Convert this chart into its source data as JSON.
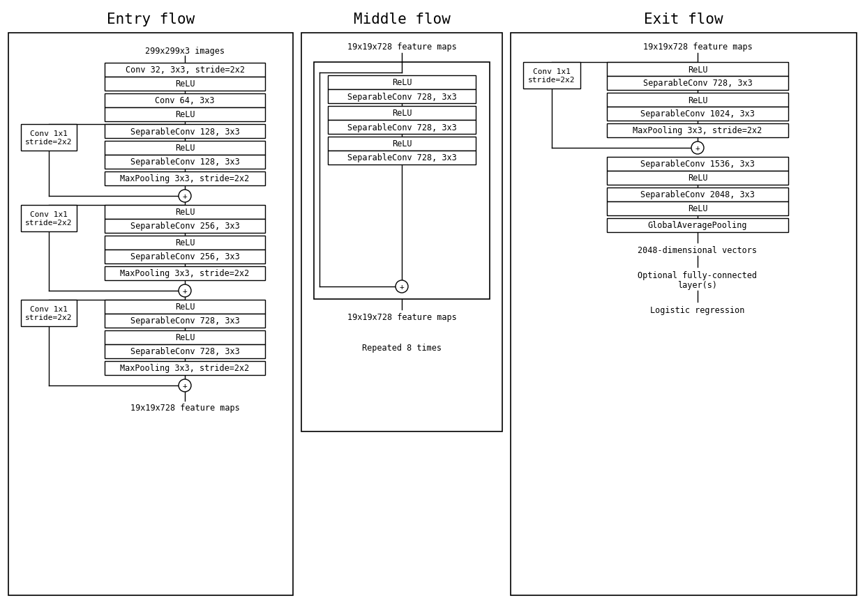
{
  "title_entry": "Entry flow",
  "title_middle": "Middle flow",
  "title_exit": "Exit flow",
  "bg_color": "#ffffff",
  "border_color": "#000000",
  "text_color": "#000000",
  "font_family": "DejaVu Sans Mono",
  "title_fontsize": 15,
  "label_fontsize": 8.5
}
